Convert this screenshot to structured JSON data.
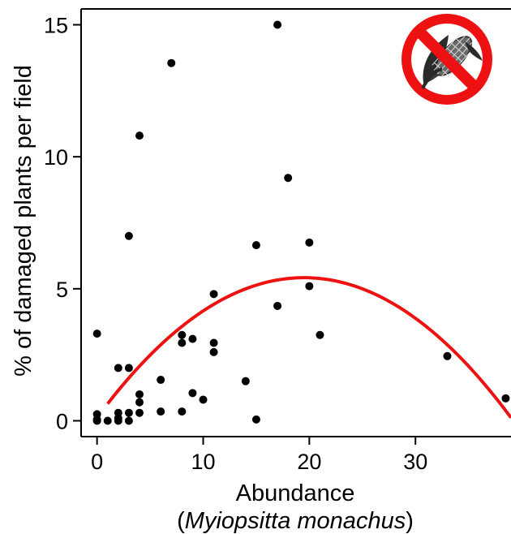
{
  "chart_data": {
    "type": "scatter",
    "xlabel_line1": "Abundance",
    "xlabel_line2_open": "(",
    "xlabel_line2_species": "Myiopsitta monachus",
    "xlabel_line2_close": ")",
    "ylabel": "% of damaged plants per field",
    "xlim": [
      -1.5,
      39
    ],
    "ylim": [
      -0.6,
      15.6
    ],
    "x_ticks": [
      0,
      10,
      20,
      30
    ],
    "y_ticks": [
      0,
      5,
      10,
      15
    ],
    "x_tick_labels": [
      "0",
      "10",
      "20",
      "30"
    ],
    "y_tick_labels": [
      "0",
      "5",
      "10",
      "15"
    ],
    "grid": false,
    "points": [
      {
        "x": 0,
        "y": 0
      },
      {
        "x": 0,
        "y": 0.05
      },
      {
        "x": 0,
        "y": 0.25
      },
      {
        "x": 0,
        "y": 3.3
      },
      {
        "x": 1,
        "y": 0
      },
      {
        "x": 2,
        "y": 0
      },
      {
        "x": 2,
        "y": 0.1
      },
      {
        "x": 2,
        "y": 0.3
      },
      {
        "x": 2,
        "y": 2.0
      },
      {
        "x": 3,
        "y": 0
      },
      {
        "x": 3,
        "y": 0.3
      },
      {
        "x": 3,
        "y": 2.0
      },
      {
        "x": 3,
        "y": 7.0
      },
      {
        "x": 4,
        "y": 0.3
      },
      {
        "x": 4,
        "y": 0.7
      },
      {
        "x": 4,
        "y": 1.0
      },
      {
        "x": 4,
        "y": 10.8
      },
      {
        "x": 6,
        "y": 0.35
      },
      {
        "x": 6,
        "y": 1.55
      },
      {
        "x": 7,
        "y": 13.55
      },
      {
        "x": 8,
        "y": 0.35
      },
      {
        "x": 8,
        "y": 2.95
      },
      {
        "x": 8,
        "y": 3.25
      },
      {
        "x": 9,
        "y": 1.05
      },
      {
        "x": 9,
        "y": 3.1
      },
      {
        "x": 10,
        "y": 0.8
      },
      {
        "x": 11,
        "y": 2.6
      },
      {
        "x": 11,
        "y": 2.95
      },
      {
        "x": 11,
        "y": 4.8
      },
      {
        "x": 14,
        "y": 1.5
      },
      {
        "x": 15,
        "y": 0.05
      },
      {
        "x": 15,
        "y": 6.65
      },
      {
        "x": 17,
        "y": 4.35
      },
      {
        "x": 17,
        "y": 15.0
      },
      {
        "x": 18,
        "y": 9.2
      },
      {
        "x": 20,
        "y": 5.1
      },
      {
        "x": 20,
        "y": 6.75
      },
      {
        "x": 21,
        "y": 3.25
      },
      {
        "x": 33,
        "y": 2.45
      },
      {
        "x": 38.5,
        "y": 0.85
      }
    ],
    "fit_curve": {
      "type": "quadratic",
      "color": "#ee1111",
      "peak_x": 19.5,
      "peak_y": 5.42,
      "a": -0.01395,
      "x_range": [
        1,
        39
      ]
    },
    "point_color": "#000000"
  },
  "icon": {
    "name": "no-corn-icon",
    "ring_color": "#ee1111",
    "corn_color": "#333333"
  }
}
